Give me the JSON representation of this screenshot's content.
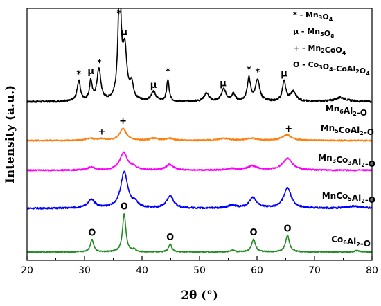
{
  "chart_data": {
    "type": "line",
    "xlabel": "2θ (°)",
    "ylabel": "Intensity (a.u.)",
    "xlim": [
      20,
      80
    ],
    "x_ticks": [
      20,
      30,
      40,
      50,
      60,
      70,
      80
    ],
    "legend_position": "top-right",
    "legend": [
      {
        "symbol": "*",
        "parts": [
          [
            "* - Mn",
            ""
          ],
          [
            "3",
            "sub"
          ],
          [
            "O",
            ""
          ],
          [
            "4",
            "sub"
          ]
        ]
      },
      {
        "symbol": "μ",
        "parts": [
          [
            "μ - Mn",
            ""
          ],
          [
            "5",
            "sub"
          ],
          [
            "O",
            ""
          ],
          [
            "8",
            "sub"
          ]
        ]
      },
      {
        "symbol": "+",
        "parts": [
          [
            "+ - Mn",
            ""
          ],
          [
            "2",
            "sub"
          ],
          [
            "CoO",
            ""
          ],
          [
            "4",
            "sub"
          ]
        ]
      },
      {
        "symbol": "O",
        "parts": [
          [
            "O - Co",
            ""
          ],
          [
            "3",
            "sub"
          ],
          [
            "O",
            ""
          ],
          [
            "4",
            "sub"
          ],
          [
            "-CoAl",
            ""
          ],
          [
            "2",
            "sub"
          ],
          [
            "O",
            ""
          ],
          [
            "4",
            "sub"
          ]
        ]
      }
    ],
    "series": [
      {
        "name": "Mn6Al2-O",
        "label_parts": [
          [
            "Mn",
            ""
          ],
          [
            "6",
            "sub"
          ],
          [
            "Al",
            ""
          ],
          [
            "2",
            "sub"
          ],
          [
            "-O",
            ""
          ]
        ],
        "color": "#000000",
        "baseline": 0.0,
        "noise": 0.007,
        "peaks": [
          {
            "x": 29.0,
            "h": 0.145,
            "w": 0.35
          },
          {
            "x": 31.1,
            "h": 0.14,
            "w": 0.28
          },
          {
            "x": 32.5,
            "h": 0.23,
            "w": 0.4
          },
          {
            "x": 36.1,
            "h": 0.85,
            "w": 0.3
          },
          {
            "x": 37.0,
            "h": 0.36,
            "w": 0.45
          },
          {
            "x": 38.2,
            "h": 0.11,
            "w": 0.35
          },
          {
            "x": 42.0,
            "h": 0.065,
            "w": 0.5
          },
          {
            "x": 44.5,
            "h": 0.155,
            "w": 0.25
          },
          {
            "x": 51.2,
            "h": 0.06,
            "w": 0.5
          },
          {
            "x": 54.2,
            "h": 0.085,
            "w": 0.5
          },
          {
            "x": 55.9,
            "h": 0.05,
            "w": 0.4
          },
          {
            "x": 58.6,
            "h": 0.165,
            "w": 0.35
          },
          {
            "x": 60.1,
            "h": 0.15,
            "w": 0.45
          },
          {
            "x": 64.7,
            "h": 0.145,
            "w": 0.35
          },
          {
            "x": 66.3,
            "h": 0.07,
            "w": 0.6
          },
          {
            "x": 74.5,
            "h": 0.03,
            "w": 1.2
          }
        ],
        "markers": [
          {
            "x": 29.0,
            "symbol": "*"
          },
          {
            "x": 31.1,
            "symbol": "μ"
          },
          {
            "x": 32.6,
            "symbol": "*"
          },
          {
            "x": 36.0,
            "symbol": "*"
          },
          {
            "x": 36.9,
            "symbol": "μ"
          },
          {
            "x": 42.0,
            "symbol": "μ"
          },
          {
            "x": 44.5,
            "symbol": "*"
          },
          {
            "x": 54.1,
            "symbol": "μ"
          },
          {
            "x": 58.6,
            "symbol": "*"
          },
          {
            "x": 60.1,
            "symbol": "*"
          },
          {
            "x": 64.7,
            "symbol": "μ"
          }
        ]
      },
      {
        "name": "Mn5CoAl2-O",
        "label_parts": [
          [
            "Mn",
            ""
          ],
          [
            "5",
            "sub"
          ],
          [
            "CoAl",
            ""
          ],
          [
            "2",
            "sub"
          ],
          [
            "-O",
            ""
          ]
        ],
        "color": "#ff7f0e",
        "baseline": 0.0,
        "noise": 0.005,
        "peaks": [
          {
            "x": 31.0,
            "h": 0.015,
            "w": 0.7
          },
          {
            "x": 33.0,
            "h": 0.012,
            "w": 0.8
          },
          {
            "x": 36.7,
            "h": 0.085,
            "w": 0.7
          },
          {
            "x": 42.0,
            "h": 0.015,
            "w": 0.8
          },
          {
            "x": 44.8,
            "h": 0.015,
            "w": 0.8
          },
          {
            "x": 54.3,
            "h": 0.015,
            "w": 1.2
          },
          {
            "x": 59.0,
            "h": 0.015,
            "w": 1.0
          },
          {
            "x": 65.2,
            "h": 0.04,
            "w": 1.0
          }
        ],
        "markers": [
          {
            "x": 33.0,
            "symbol": "+"
          },
          {
            "x": 36.7,
            "symbol": "+"
          },
          {
            "x": 65.5,
            "symbol": "+"
          }
        ]
      },
      {
        "name": "Mn3Co3Al2-O",
        "label_parts": [
          [
            "Mn",
            ""
          ],
          [
            "3",
            "sub"
          ],
          [
            "Co",
            ""
          ],
          [
            "3",
            "sub"
          ],
          [
            "Al",
            ""
          ],
          [
            "2",
            "sub"
          ],
          [
            "-O",
            ""
          ]
        ],
        "color": "#ff00ff",
        "baseline": 0.0,
        "noise": 0.005,
        "peaks": [
          {
            "x": 31.1,
            "h": 0.02,
            "w": 0.8
          },
          {
            "x": 36.8,
            "h": 0.125,
            "w": 0.8
          },
          {
            "x": 38.5,
            "h": 0.02,
            "w": 0.6
          },
          {
            "x": 44.8,
            "h": 0.04,
            "w": 0.8
          },
          {
            "x": 55.5,
            "h": 0.012,
            "w": 1.0
          },
          {
            "x": 59.2,
            "h": 0.03,
            "w": 1.0
          },
          {
            "x": 65.3,
            "h": 0.085,
            "w": 1.0
          }
        ],
        "markers": []
      },
      {
        "name": "MnCo5Al2-O",
        "label_parts": [
          [
            "MnCo",
            ""
          ],
          [
            "5",
            "sub"
          ],
          [
            "Al",
            ""
          ],
          [
            "2",
            "sub"
          ],
          [
            "-O",
            ""
          ]
        ],
        "color": "#0000ff",
        "baseline": 0.0,
        "noise": 0.006,
        "peaks": [
          {
            "x": 31.2,
            "h": 0.06,
            "w": 0.8
          },
          {
            "x": 36.9,
            "h": 0.26,
            "w": 0.75
          },
          {
            "x": 38.8,
            "h": 0.03,
            "w": 0.6
          },
          {
            "x": 44.9,
            "h": 0.09,
            "w": 0.7
          },
          {
            "x": 55.7,
            "h": 0.02,
            "w": 0.9
          },
          {
            "x": 59.3,
            "h": 0.075,
            "w": 0.8
          },
          {
            "x": 65.3,
            "h": 0.145,
            "w": 0.8
          },
          {
            "x": 77.0,
            "h": 0.015,
            "w": 1.5
          }
        ],
        "markers": []
      },
      {
        "name": "Co6Al2-O",
        "label_parts": [
          [
            "Co",
            ""
          ],
          [
            "6",
            "sub"
          ],
          [
            "Al",
            ""
          ],
          [
            "2",
            "sub"
          ],
          [
            "-O",
            ""
          ]
        ],
        "color": "#228b22",
        "baseline": 0.0,
        "noise": 0.004,
        "peaks": [
          {
            "x": 31.3,
            "h": 0.09,
            "w": 0.35
          },
          {
            "x": 36.9,
            "h": 0.275,
            "w": 0.35
          },
          {
            "x": 38.6,
            "h": 0.015,
            "w": 0.35
          },
          {
            "x": 44.9,
            "h": 0.055,
            "w": 0.35
          },
          {
            "x": 55.7,
            "h": 0.015,
            "w": 0.4
          },
          {
            "x": 59.4,
            "h": 0.09,
            "w": 0.4
          },
          {
            "x": 65.3,
            "h": 0.12,
            "w": 0.4
          },
          {
            "x": 77.4,
            "h": 0.01,
            "w": 0.5
          }
        ],
        "markers": [
          {
            "x": 31.3,
            "symbol": "O"
          },
          {
            "x": 36.9,
            "symbol": "O"
          },
          {
            "x": 44.9,
            "symbol": "O"
          },
          {
            "x": 59.4,
            "symbol": "O"
          },
          {
            "x": 65.3,
            "symbol": "O"
          }
        ]
      }
    ]
  }
}
